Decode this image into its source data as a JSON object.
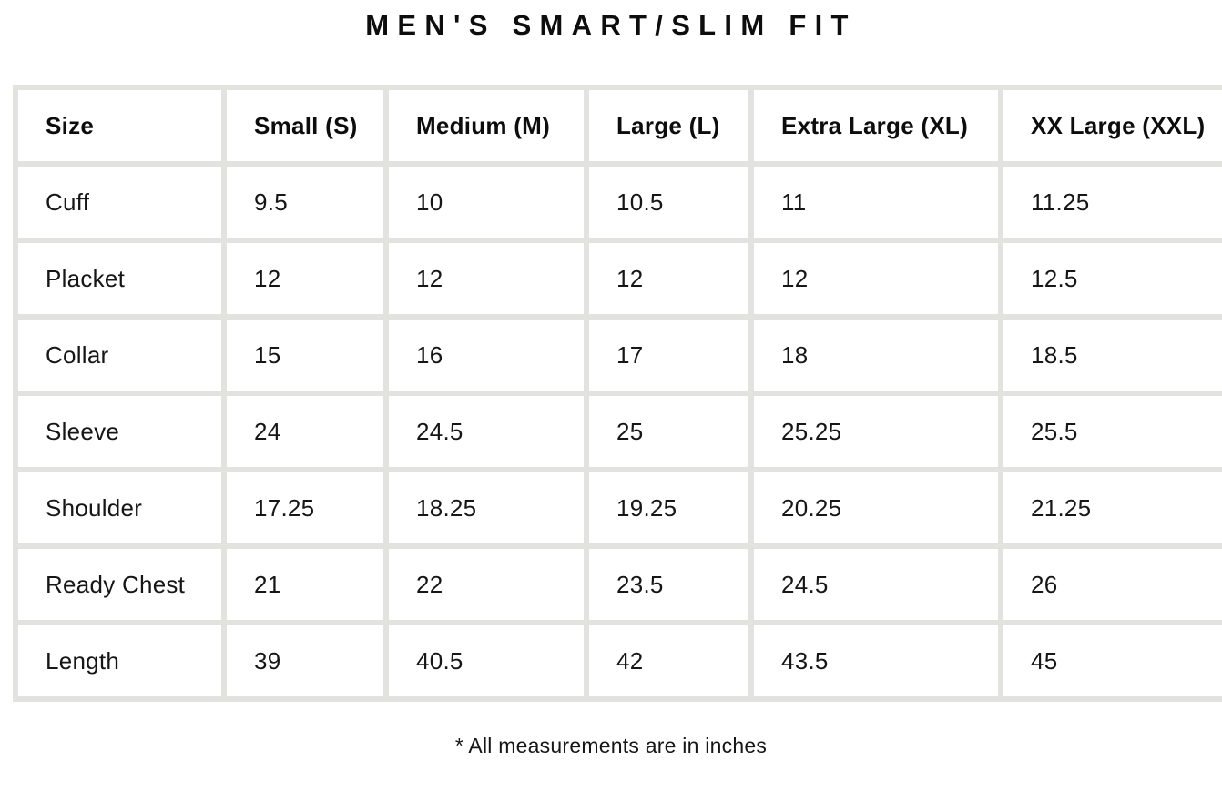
{
  "title": "MEN'S SMART/SLIM FIT",
  "footnote": "* All measurements are in inches",
  "colors": {
    "background": "#ffffff",
    "grid_line": "#e2e2df",
    "text": "#111111"
  },
  "table": {
    "headers": [
      "Size",
      "Small (S)",
      "Medium (M)",
      "Large (L)",
      "Extra Large (XL)",
      "XX Large (XXL)"
    ],
    "rows": [
      {
        "label": "Cuff",
        "values": [
          "9.5",
          "10",
          "10.5",
          "11",
          "11.25"
        ]
      },
      {
        "label": "Placket",
        "values": [
          "12",
          "12",
          "12",
          "12",
          "12.5"
        ]
      },
      {
        "label": "Collar",
        "values": [
          "15",
          "16",
          "17",
          "18",
          "18.5"
        ]
      },
      {
        "label": "Sleeve",
        "values": [
          "24",
          "24.5",
          "25",
          "25.25",
          "25.5"
        ]
      },
      {
        "label": "Shoulder",
        "values": [
          "17.25",
          "18.25",
          "19.25",
          "20.25",
          "21.25"
        ]
      },
      {
        "label": "Ready Chest",
        "values": [
          "21",
          "22",
          "23.5",
          "24.5",
          "26"
        ]
      },
      {
        "label": "Length",
        "values": [
          "39",
          "40.5",
          "42",
          "43.5",
          "45"
        ]
      }
    ],
    "units_note": "inches"
  }
}
